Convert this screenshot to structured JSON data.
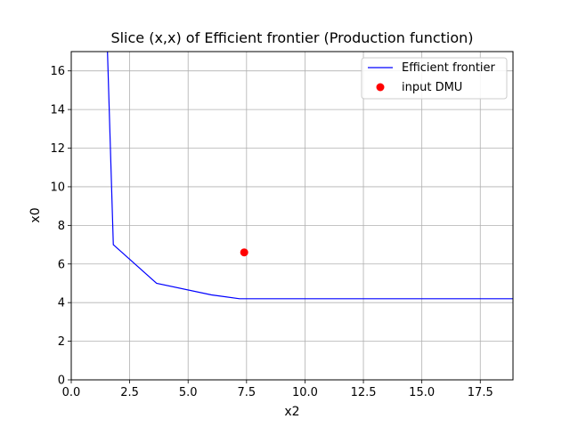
{
  "chart_data": {
    "type": "line",
    "title": "Slice (x,x) of Efficient frontier (Production function)",
    "xlabel": "x2",
    "ylabel": "x0",
    "xlim": [
      0,
      18.9
    ],
    "ylim": [
      0,
      17
    ],
    "xticks": [
      0.0,
      2.5,
      5.0,
      7.5,
      10.0,
      12.5,
      15.0,
      17.5
    ],
    "xtick_labels": [
      "0.0",
      "2.5",
      "5.0",
      "7.5",
      "10.0",
      "12.5",
      "15.0",
      "17.5"
    ],
    "yticks": [
      0,
      2,
      4,
      6,
      8,
      10,
      12,
      14,
      16
    ],
    "ytick_labels": [
      "0",
      "2",
      "4",
      "6",
      "8",
      "10",
      "12",
      "14",
      "16"
    ],
    "grid": true,
    "legend_position": "top-right",
    "series": [
      {
        "name": "Efficient frontier",
        "kind": "line",
        "color": "#0000ff",
        "x": [
          1.55,
          1.8,
          3.65,
          6.0,
          7.2,
          18.9
        ],
        "y": [
          17.0,
          7.0,
          5.0,
          4.4,
          4.2,
          4.2
        ]
      },
      {
        "name": "input DMU",
        "kind": "scatter",
        "color": "#ff0000",
        "x": [
          7.4
        ],
        "y": [
          6.6
        ]
      }
    ]
  }
}
